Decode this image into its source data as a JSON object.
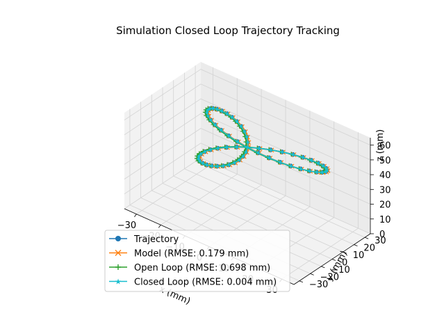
{
  "chart_data": {
    "type": "line3d",
    "title": "Simulation Closed Loop Trajectory Tracking",
    "xlabel": "x (mm)",
    "ylabel": "y (mm)",
    "zlabel": "z (mm)",
    "xlim": [
      -35,
      35
    ],
    "ylim": [
      -35,
      35
    ],
    "zlim": [
      0,
      65
    ],
    "x_ticks": [
      "−30",
      "−20",
      "−10",
      "0",
      "10",
      "20",
      "30"
    ],
    "y_ticks": [
      "−30",
      "−20",
      "−10",
      "0",
      "10",
      "20",
      "30"
    ],
    "z_ticks": [
      "0",
      "10",
      "20",
      "30",
      "40",
      "50",
      "60"
    ],
    "grid": true,
    "legend_position": "lower-left",
    "trajectory_shape": {
      "description": "three-lobed rose curve at z = 50",
      "radius_mm": 30,
      "z_mm": 50,
      "lobes": 3
    },
    "series": [
      {
        "name": "Trajectory",
        "color": "#1f77b4",
        "marker": "circle"
      },
      {
        "name": "Model (RMSE: 0.179 mm)",
        "color": "#ff7f0e",
        "marker": "x"
      },
      {
        "name": "Open Loop (RMSE: 0.698 mm)",
        "color": "#2ca02c",
        "marker": "plus"
      },
      {
        "name": "Closed Loop (RMSE: 0.004 mm)",
        "color": "#17becf",
        "marker": "star"
      }
    ]
  }
}
